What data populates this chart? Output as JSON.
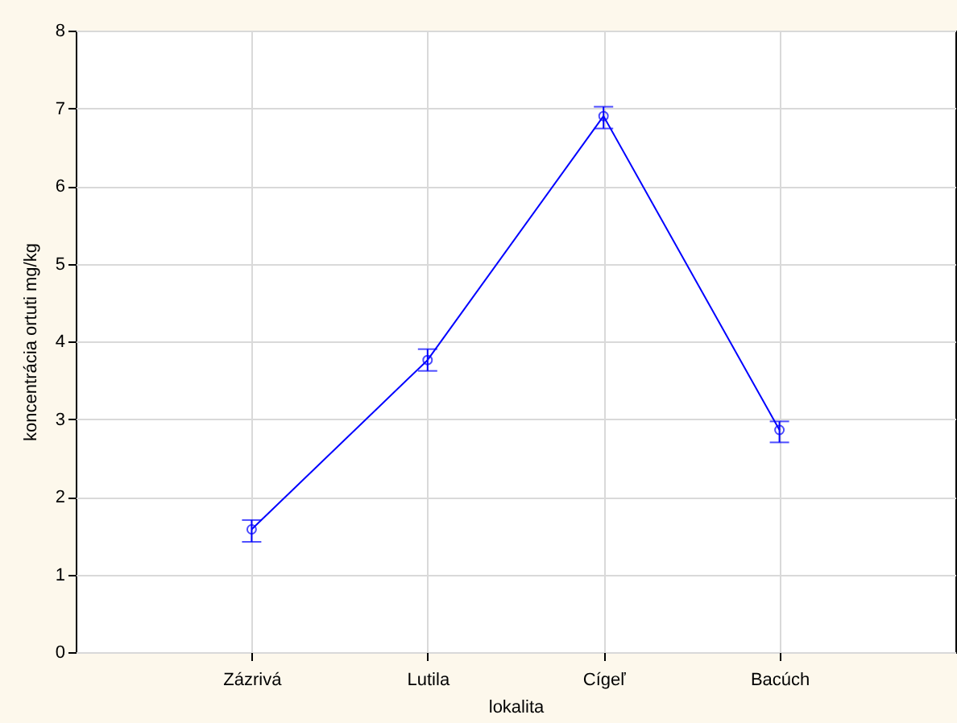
{
  "chart_data": {
    "type": "line",
    "xlabel": "lokalita",
    "ylabel": "koncentrácia ortuti mg/kg",
    "categories": [
      "Zázrivá",
      "Lutila",
      "Cígeľ",
      "Bacúch"
    ],
    "series": [
      {
        "color": "#0000ff",
        "values": [
          1.58,
          3.76,
          6.9,
          2.86
        ],
        "errors": [
          [
            1.42,
            1.7
          ],
          [
            3.62,
            3.9
          ],
          [
            6.74,
            7.02
          ],
          [
            2.7,
            2.97
          ]
        ]
      }
    ],
    "ylim": [
      0,
      8
    ],
    "yticks": [
      0,
      1,
      2,
      3,
      4,
      5,
      6,
      7,
      8
    ],
    "grid": true,
    "marker": "circle",
    "line_style": "solid"
  }
}
